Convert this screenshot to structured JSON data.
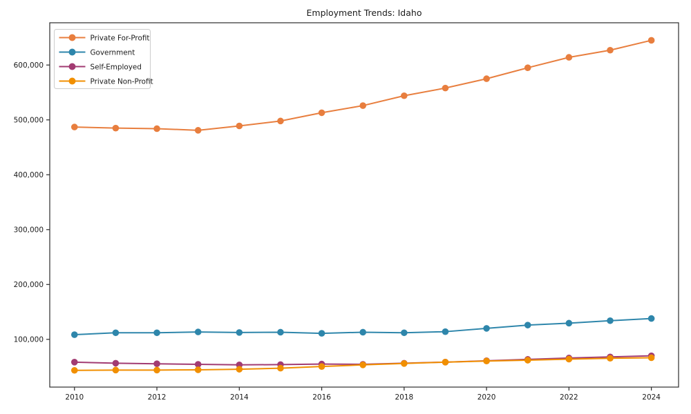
{
  "figure": {
    "background": "#ffffff",
    "spine_color": "#2b2b2b",
    "text_color": "#1a1a1a"
  },
  "chart_data": {
    "type": "line",
    "title": "Employment Trends: Idaho",
    "xlabel": "",
    "ylabel": "",
    "grid": false,
    "legend_position": "upper-left",
    "x": [
      2010,
      2011,
      2012,
      2013,
      2014,
      2015,
      2016,
      2017,
      2018,
      2019,
      2020,
      2021,
      2022,
      2023,
      2024
    ],
    "xticks": [
      2010,
      2012,
      2014,
      2016,
      2018,
      2020,
      2022,
      2024
    ],
    "yticks": [
      100000,
      200000,
      300000,
      400000,
      500000,
      600000
    ],
    "ytick_labels": [
      "100,000",
      "200,000",
      "300,000",
      "400,000",
      "500,000",
      "600,000"
    ],
    "xlim": [
      2009.4,
      2024.66
    ],
    "ylim": [
      13000,
      677000
    ],
    "marker": "circle",
    "series": [
      {
        "name": "Private For-Profit",
        "color": "#e87e3e",
        "values": [
          487000,
          485000,
          484000,
          481000,
          489000,
          498000,
          513000,
          526000,
          544000,
          558000,
          575000,
          595000,
          614000,
          627000,
          645000
        ]
      },
      {
        "name": "Government",
        "color": "#2e86ab",
        "values": [
          108500,
          112000,
          112000,
          113500,
          112500,
          113000,
          111000,
          113000,
          112000,
          114000,
          120000,
          126000,
          129500,
          134000,
          138000
        ]
      },
      {
        "name": "Self-Employed",
        "color": "#a23b72",
        "values": [
          58500,
          56500,
          55500,
          54500,
          53500,
          54000,
          55000,
          54500,
          56500,
          58500,
          61000,
          63500,
          66000,
          68000,
          70000
        ]
      },
      {
        "name": "Private Non-Profit",
        "color": "#f18f01",
        "values": [
          43500,
          44000,
          44000,
          44500,
          45500,
          47500,
          50500,
          53500,
          56000,
          58500,
          60500,
          62000,
          64000,
          65500,
          66500
        ]
      }
    ]
  }
}
